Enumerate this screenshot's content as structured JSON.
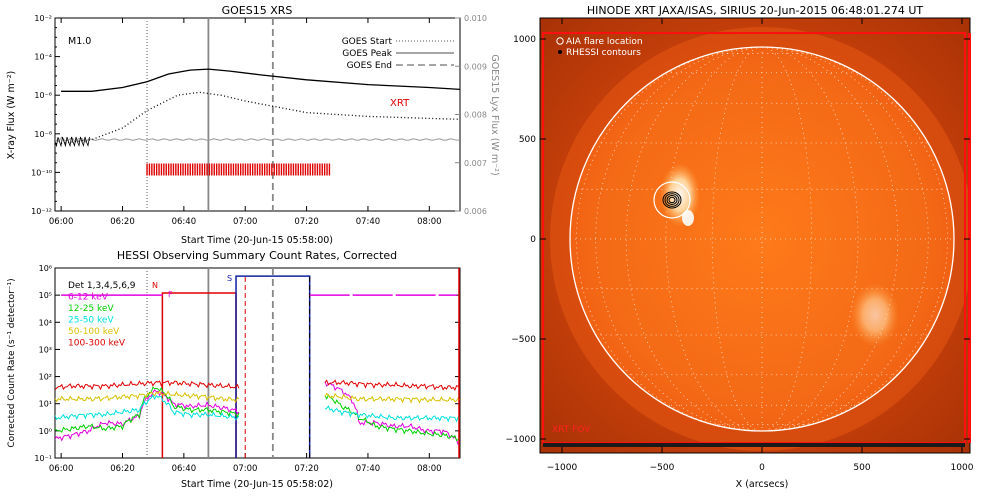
{
  "chart_data": [
    {
      "type": "line",
      "title": "GOES15 XRS",
      "xlabel": "Start Time (20-Jun-15 05:58:00)",
      "ylabel": "X-ray Flux (W m⁻²)",
      "y2label": "GOES15 Lyx Flux (W m⁻²)",
      "xticks": [
        "06:00",
        "06:20",
        "06:40",
        "07:00",
        "07:20",
        "07:40",
        "08:00"
      ],
      "yticks": [
        "10⁻¹²",
        "10⁻¹⁰",
        "10⁻⁸",
        "10⁻⁶",
        "10⁻⁴",
        "10⁻²"
      ],
      "y2ticks": [
        "0.006",
        "0.007",
        "0.008",
        "0.009",
        "0.010"
      ],
      "class_label": "M1.0",
      "legend": [
        "GOES Start",
        "GOES Peak",
        "GOES End"
      ],
      "xrt_label": "XRT",
      "event_times": {
        "start": "06:28",
        "peak": "06:48",
        "end": "07:09"
      },
      "xrt_obs_range": [
        "06:28",
        "07:28"
      ],
      "series": [
        {
          "name": "long",
          "x": [
            "06:00",
            "06:10",
            "06:20",
            "06:28",
            "06:35",
            "06:42",
            "06:48",
            "06:55",
            "07:05",
            "07:20",
            "07:40",
            "08:00",
            "08:10"
          ],
          "y": [
            -5.8,
            -5.8,
            -5.6,
            -5.3,
            -4.9,
            -4.7,
            -4.65,
            -4.75,
            -4.95,
            -5.2,
            -5.45,
            -5.6,
            -5.7
          ]
        },
        {
          "name": "short",
          "x": [
            "06:00",
            "06:10",
            "06:20",
            "06:28",
            "06:38",
            "06:45",
            "06:52",
            "07:00",
            "07:10",
            "07:20",
            "07:40",
            "08:00",
            "08:10"
          ],
          "y": [
            -8.5,
            -8.3,
            -7.7,
            -6.8,
            -6.0,
            -5.85,
            -6.0,
            -6.3,
            -6.6,
            -6.9,
            -7.1,
            -7.2,
            -7.25
          ]
        }
      ]
    },
    {
      "type": "line",
      "title": "HESSI Observing Summary Count Rates, Corrected",
      "xlabel": "Start Time (20-Jun-15 05:58:02)",
      "ylabel": "Corrected Count Rate (s⁻¹ detector⁻¹)",
      "xticks": [
        "06:00",
        "06:20",
        "06:40",
        "07:00",
        "07:20",
        "07:40",
        "08:00"
      ],
      "yticks": [
        "10⁻¹",
        "10⁰",
        "10¹",
        "10²",
        "10³",
        "10⁴",
        "10⁵",
        "10⁶"
      ],
      "legend": [
        {
          "label": "Det 1,3,4,5,6,9",
          "color": "#000000"
        },
        {
          "label": "6-12 keV",
          "color": "#e000e0"
        },
        {
          "label": "12-25 keV",
          "color": "#00d000"
        },
        {
          "label": "25-50 keV",
          "color": "#00e0e0"
        },
        {
          "label": "50-100 keV",
          "color": "#d8c000"
        },
        {
          "label": "100-300 keV",
          "color": "#e00000"
        }
      ],
      "flags": {
        "N": "N",
        "F": "F",
        "S": "S"
      },
      "series": [
        {
          "name": "6-12 keV",
          "values": [
            0.5,
            0.7,
            1.0,
            2.0,
            1.8,
            3.5,
            30,
            10,
            8,
            9,
            7,
            5,
            null,
            null,
            null,
            null,
            60,
            30,
            2,
            2,
            1.5,
            1.5,
            1,
            1,
            0.3
          ]
        },
        {
          "name": "12-25 keV",
          "values": [
            1,
            1.2,
            1.5,
            1.2,
            1.5,
            4,
            40,
            8,
            6,
            6,
            5,
            4,
            null,
            null,
            null,
            null,
            20,
            8,
            3,
            1.5,
            1.2,
            1,
            0.8,
            0.7,
            0.5
          ]
        },
        {
          "name": "25-50 keV",
          "values": [
            3,
            3.5,
            4,
            4,
            5,
            6,
            20,
            5,
            4,
            4,
            3.5,
            3,
            null,
            null,
            null,
            null,
            7,
            5,
            4,
            3.5,
            3,
            3,
            3,
            3,
            3
          ]
        },
        {
          "name": "50-100 keV",
          "values": [
            15,
            15,
            15,
            16,
            18,
            20,
            25,
            22,
            20,
            18,
            15,
            14,
            null,
            null,
            null,
            null,
            20,
            18,
            15,
            15,
            15,
            15,
            14,
            14,
            14
          ]
        },
        {
          "name": "100-300 keV",
          "values": [
            40,
            45,
            45,
            45,
            50,
            55,
            60,
            60,
            55,
            50,
            45,
            40,
            null,
            null,
            null,
            null,
            60,
            60,
            55,
            50,
            50,
            45,
            45,
            40,
            40
          ]
        }
      ]
    },
    {
      "type": "image",
      "title": "HINODE XRT JAXA/ISAS, SIRIUS 20-Jun-2015 06:48:01.274 UT",
      "xlabel": "X (arcsecs)",
      "xticks": [
        "−1000",
        "−500",
        "0",
        "500",
        "1000"
      ],
      "yticks": [
        "1000",
        "500",
        "0",
        "−500",
        "−1000"
      ],
      "legend": [
        "AIA flare location",
        "RHESSI contours"
      ],
      "fov_label": "XRT FOV"
    }
  ]
}
